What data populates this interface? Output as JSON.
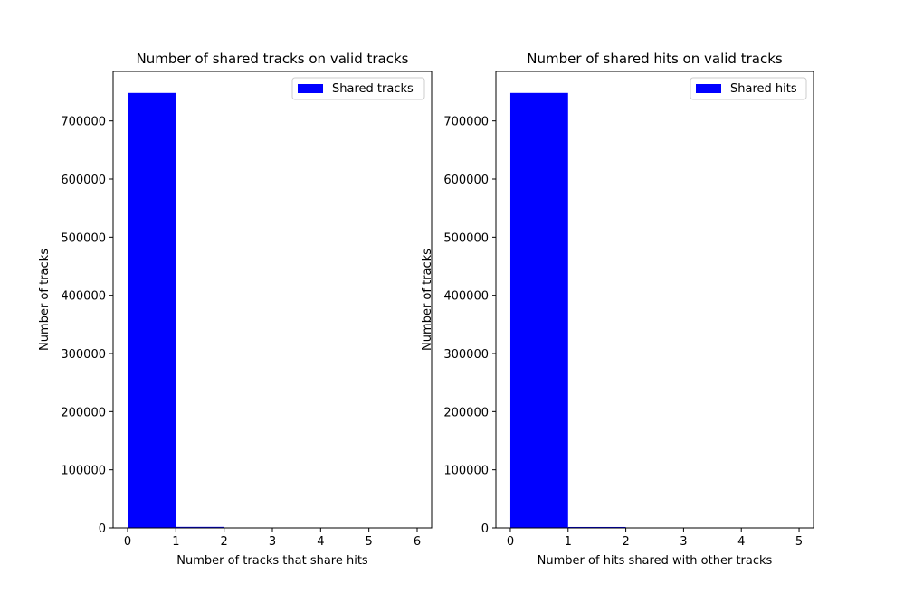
{
  "chart_data": [
    {
      "type": "bar",
      "title": "Number of shared tracks on valid tracks",
      "xlabel": "Number of tracks that share hits",
      "ylabel": "Number of tracks",
      "xlim": [
        -0.3,
        6.3
      ],
      "ylim": [
        0,
        785000
      ],
      "xticks": [
        0,
        1,
        2,
        3,
        4,
        5,
        6
      ],
      "yticks": [
        0,
        100000,
        200000,
        300000,
        400000,
        500000,
        600000,
        700000
      ],
      "bin_edges": [
        0,
        1,
        2,
        3,
        4,
        5,
        6
      ],
      "series": [
        {
          "name": "Shared tracks",
          "values": [
            748000,
            1800,
            0,
            0,
            0,
            0
          ]
        }
      ],
      "bar_color": "#0000ff",
      "legend_position": "top-right",
      "grid": false
    },
    {
      "type": "bar",
      "title": "Number of shared hits on valid tracks",
      "xlabel": "Number of hits shared with other tracks",
      "ylabel": "Number of tracks",
      "xlim": [
        -0.25,
        5.25
      ],
      "ylim": [
        0,
        785000
      ],
      "xticks": [
        0,
        1,
        2,
        3,
        4,
        5
      ],
      "yticks": [
        0,
        100000,
        200000,
        300000,
        400000,
        500000,
        600000,
        700000
      ],
      "bin_edges": [
        0,
        1,
        2,
        3,
        4,
        5
      ],
      "series": [
        {
          "name": "Shared hits",
          "values": [
            748000,
            1600,
            0,
            0,
            0
          ]
        }
      ],
      "bar_color": "#0000ff",
      "legend_position": "top-right",
      "grid": false
    }
  ]
}
